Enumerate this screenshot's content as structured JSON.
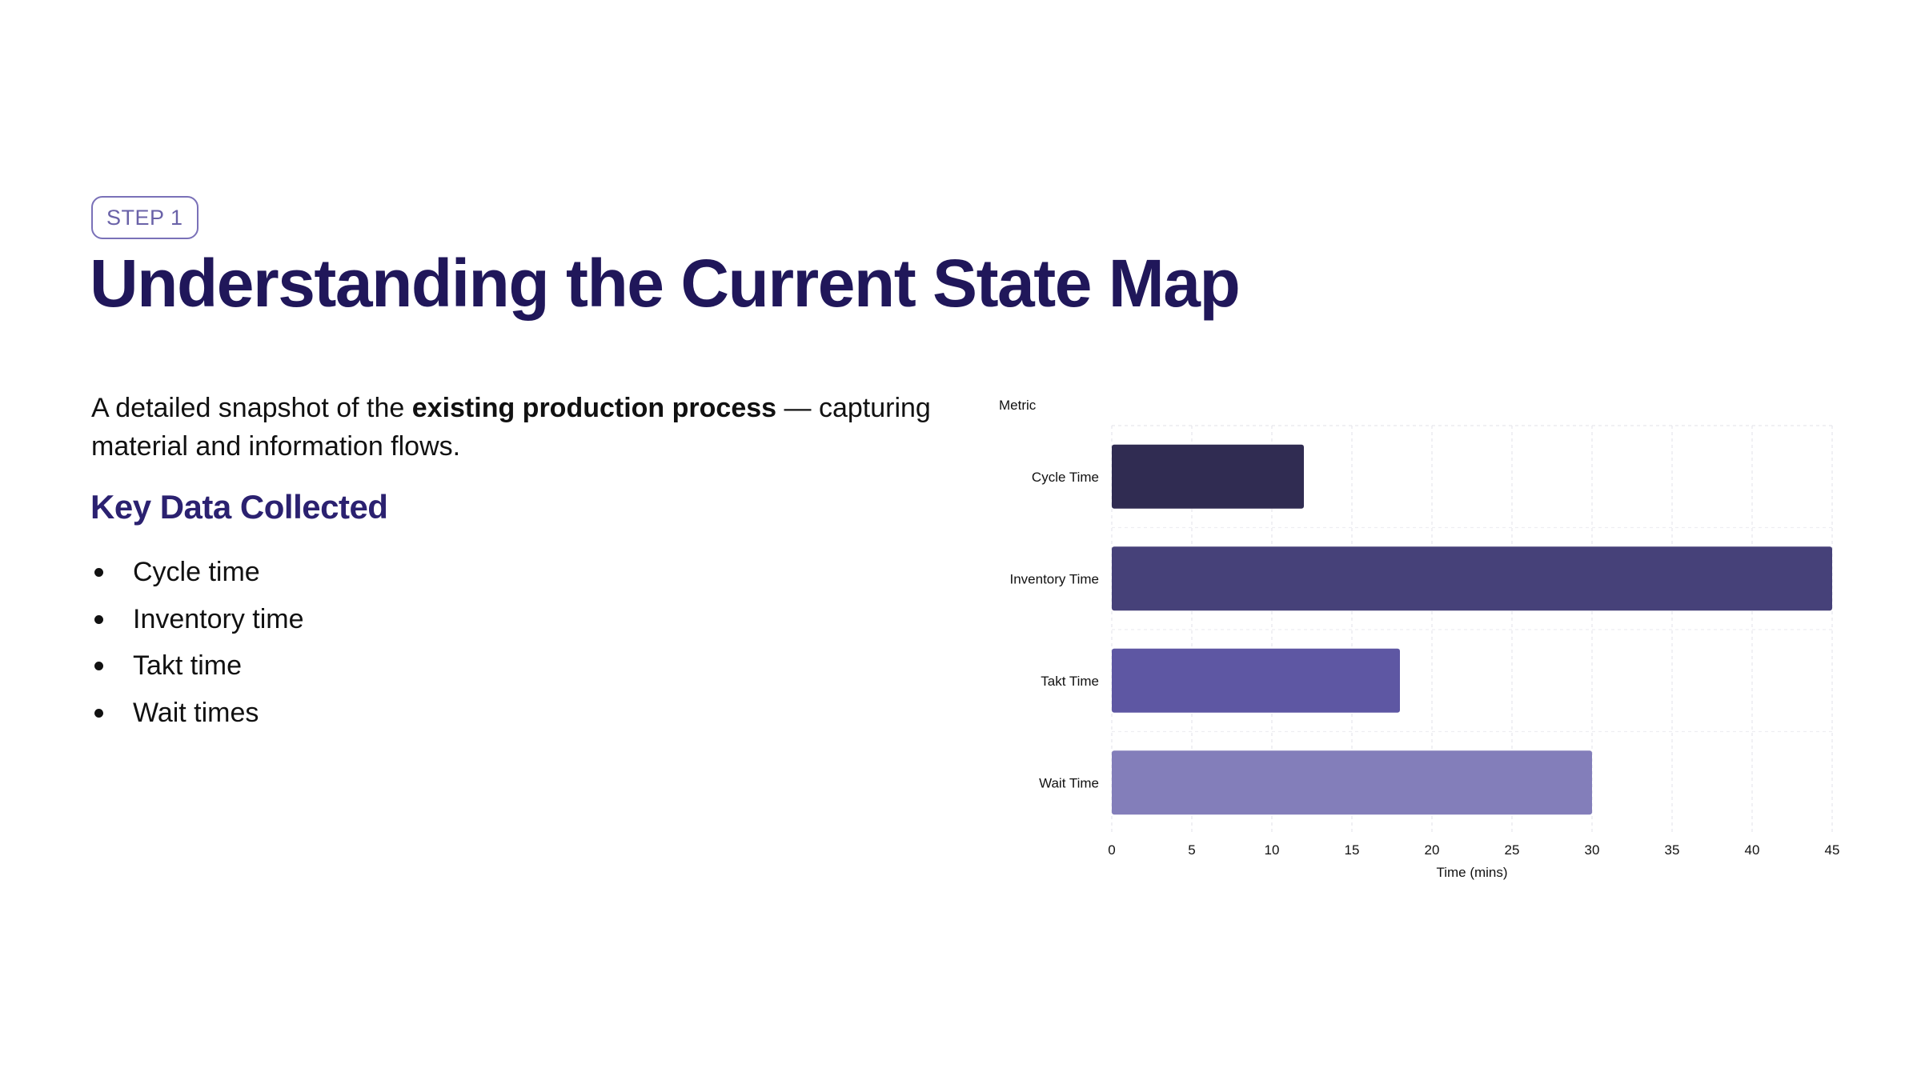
{
  "badge": "STEP 1",
  "title": "Understanding the Current State Map",
  "description": {
    "before": "A detailed snapshot of the ",
    "bold": "existing production process",
    "after": " — capturing material and information flows."
  },
  "subheading": "Key Data Collected",
  "bullets": [
    "Cycle time",
    "Inventory time",
    "Takt time",
    "Wait times"
  ],
  "chart_data": {
    "type": "bar",
    "orientation": "horizontal",
    "categories": [
      "Cycle Time",
      "Inventory Time",
      "Takt Time",
      "Wait Time"
    ],
    "values": [
      12,
      45,
      18,
      30
    ],
    "colors": [
      "#302c52",
      "#464179",
      "#5e57a3",
      "#837eba"
    ],
    "ylabel": "Metric",
    "xlabel": "Time (mins)",
    "xlim": [
      0,
      45
    ],
    "xticks": [
      0,
      5,
      10,
      15,
      20,
      25,
      30,
      35,
      40,
      45
    ],
    "grid": true
  }
}
